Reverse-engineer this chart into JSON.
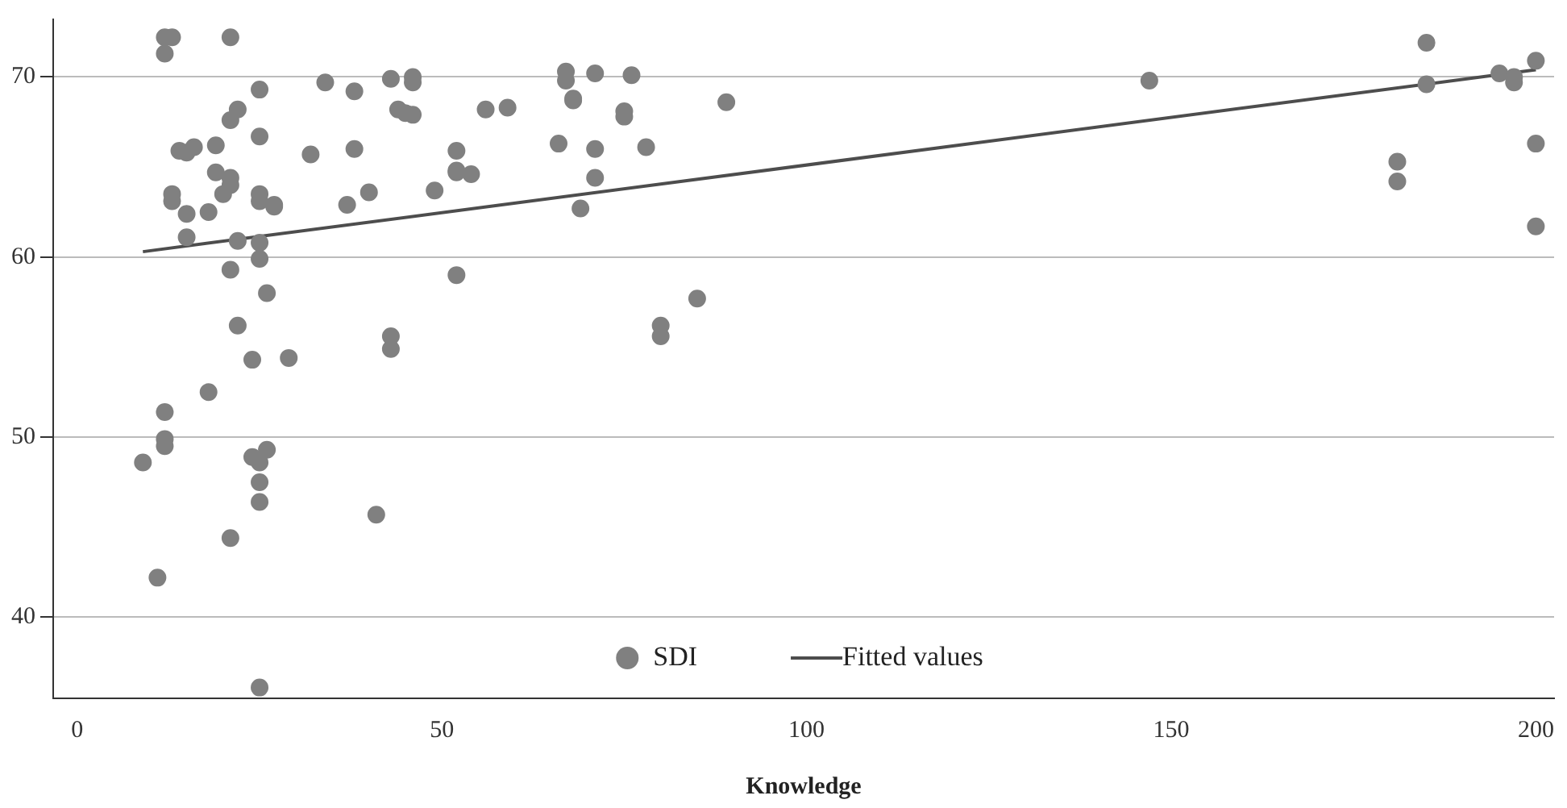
{
  "chart_data": {
    "type": "scatter",
    "xlabel": "Knowledge",
    "xlim": [
      -3.3,
      202.5
    ],
    "xticks": [
      0,
      50,
      100,
      150,
      200
    ],
    "ylim": [
      35.5,
      73.2
    ],
    "yticks": [
      40,
      50,
      60,
      70
    ],
    "grid": "y",
    "legend": "bottom",
    "marker": "circle",
    "series": [
      {
        "name": "SDI",
        "color": "#808080",
        "x": [
          12,
          13,
          12,
          21,
          13,
          13,
          14,
          15,
          16,
          15,
          15,
          18,
          19,
          19,
          20,
          21,
          21,
          21,
          22,
          21,
          22,
          25,
          25,
          25,
          25,
          27,
          27,
          25,
          25,
          26,
          22,
          24,
          29,
          18,
          12,
          12,
          12,
          9,
          24,
          26,
          25,
          25,
          25,
          21,
          11,
          25,
          41,
          32,
          34,
          37,
          38,
          38,
          40,
          43,
          44,
          45,
          46,
          46,
          46,
          43,
          43,
          49,
          52,
          52,
          52,
          54,
          52,
          56,
          59,
          66,
          67,
          67,
          68,
          68,
          69,
          71,
          71,
          71,
          75,
          75,
          76,
          78,
          80,
          80,
          85,
          89,
          147,
          181,
          181,
          185,
          185,
          195,
          197,
          197,
          200,
          200,
          200
        ],
        "values": [
          72.2,
          72.2,
          71.3,
          72.2,
          63.5,
          63.1,
          65.9,
          65.8,
          66.1,
          62.4,
          61.1,
          62.5,
          66.2,
          64.7,
          63.5,
          64.4,
          64.0,
          67.6,
          68.2,
          59.3,
          60.9,
          69.3,
          66.7,
          63.5,
          63.1,
          62.9,
          62.8,
          60.8,
          59.9,
          58.0,
          56.2,
          54.3,
          54.4,
          52.5,
          51.4,
          49.9,
          49.5,
          48.6,
          48.9,
          49.3,
          48.6,
          47.5,
          46.4,
          44.4,
          42.2,
          36.1,
          45.7,
          65.7,
          69.7,
          62.9,
          69.2,
          66.0,
          63.6,
          69.9,
          68.2,
          68.0,
          70.0,
          69.7,
          67.9,
          55.6,
          54.9,
          63.7,
          65.9,
          64.7,
          64.8,
          64.6,
          59.0,
          68.2,
          68.3,
          66.3,
          70.3,
          69.8,
          68.8,
          68.7,
          62.7,
          70.2,
          66.0,
          64.4,
          68.1,
          67.8,
          70.1,
          66.1,
          56.2,
          55.6,
          57.7,
          68.6,
          69.8,
          65.3,
          64.2,
          71.9,
          69.6,
          70.2,
          70.0,
          69.7,
          70.9,
          66.3,
          61.7
        ]
      },
      {
        "name": "Fitted values",
        "type": "line",
        "color": "#4d4d4d",
        "marker": "none",
        "x": [
          9,
          200
        ],
        "values": [
          60.3,
          70.4
        ]
      }
    ]
  }
}
